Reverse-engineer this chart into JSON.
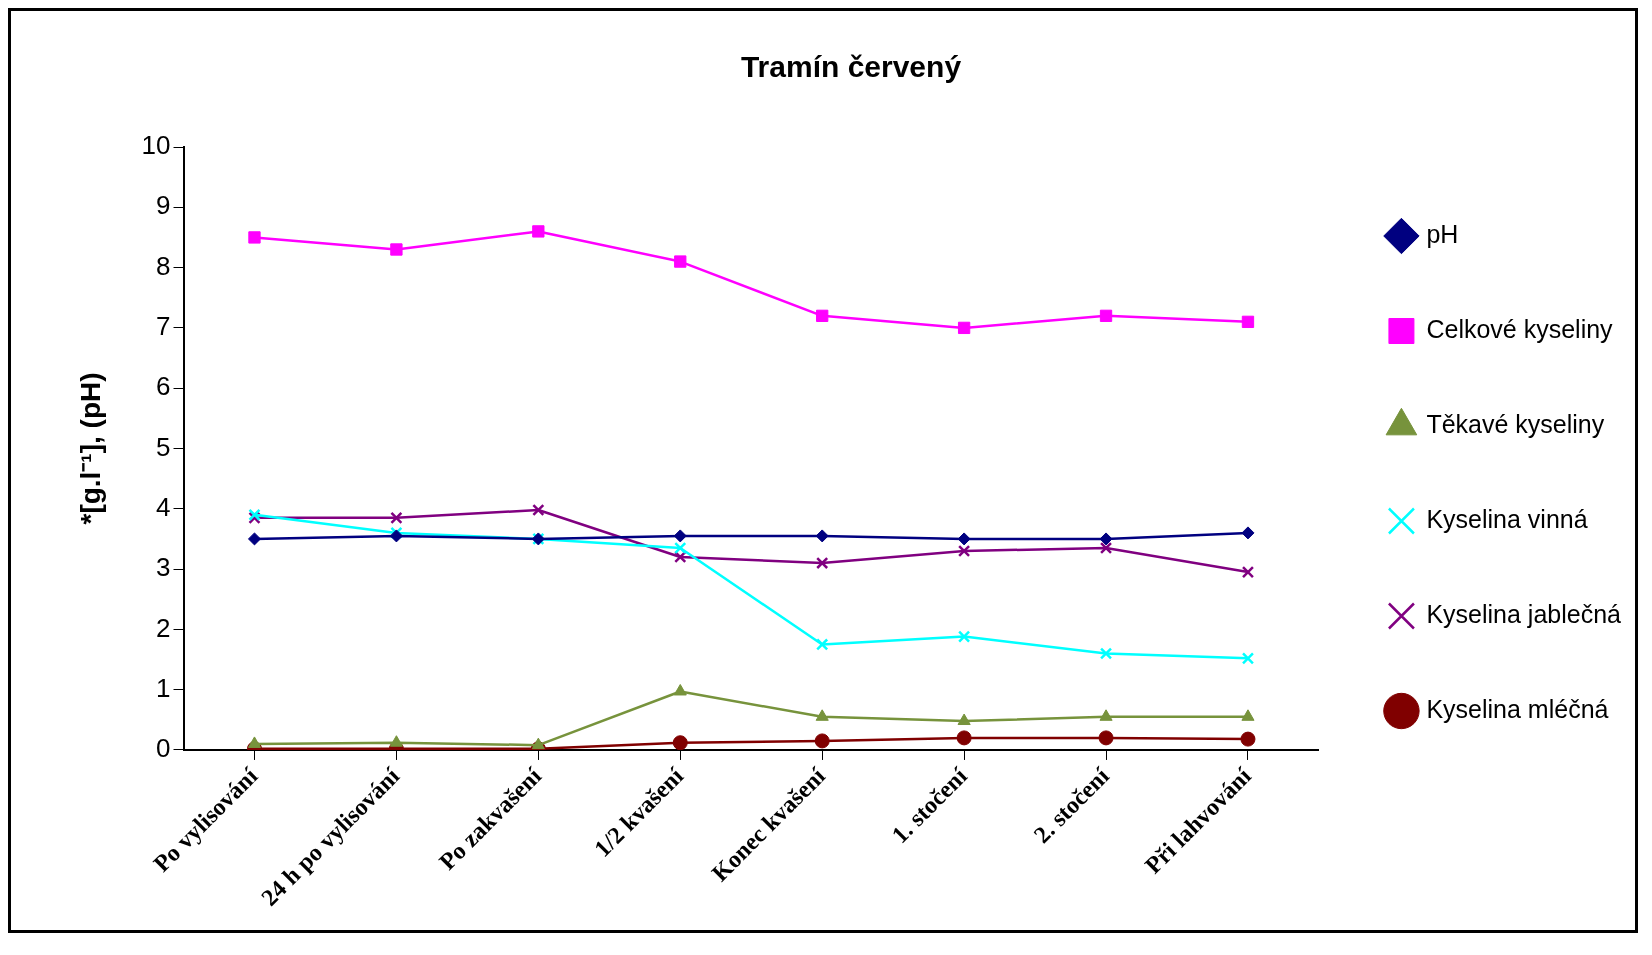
{
  "chart_data": {
    "type": "line",
    "title": "Tramín červený",
    "ylabel": "*[g.l⁻¹], (pH)",
    "categories": [
      "Po vylisování",
      "24 h po vylisování",
      "Po zakvašení",
      "1/2 kvašení",
      "Konec kvašení",
      "1. stočení",
      "2. stočení",
      "Při lahvování"
    ],
    "series": [
      {
        "name": "pH",
        "color": "#000080",
        "marker": "diamond",
        "values": [
          3.5,
          3.55,
          3.5,
          3.55,
          3.55,
          3.5,
          3.5,
          3.6
        ]
      },
      {
        "name": "Celkové kyseliny",
        "color": "#ff00ff",
        "marker": "square",
        "values": [
          8.5,
          8.3,
          8.6,
          8.1,
          7.2,
          7.0,
          7.2,
          7.1
        ]
      },
      {
        "name": "Těkavé kyseliny",
        "color": "#77933c",
        "marker": "triangle",
        "values": [
          0.1,
          0.12,
          0.08,
          0.97,
          0.55,
          0.48,
          0.55,
          0.55
        ]
      },
      {
        "name": "Kyselina vinná",
        "color": "#00ffff",
        "marker": "cross",
        "values": [
          3.9,
          3.6,
          3.5,
          3.35,
          1.75,
          1.88,
          1.6,
          1.52
        ]
      },
      {
        "name": "Kyselina jablečná",
        "color": "#800080",
        "marker": "cross",
        "values": [
          3.85,
          3.85,
          3.98,
          3.2,
          3.1,
          3.3,
          3.35,
          2.95
        ]
      },
      {
        "name": "Kyselina mléčná",
        "color": "#800000",
        "marker": "circle",
        "values": [
          0.02,
          0.02,
          0.02,
          0.12,
          0.15,
          0.2,
          0.2,
          0.18
        ]
      }
    ],
    "ylim": [
      0,
      10
    ],
    "yticks": [
      0,
      1,
      2,
      3,
      4,
      5,
      6,
      7,
      8,
      9,
      10
    ],
    "grid": false,
    "legend": "right"
  }
}
